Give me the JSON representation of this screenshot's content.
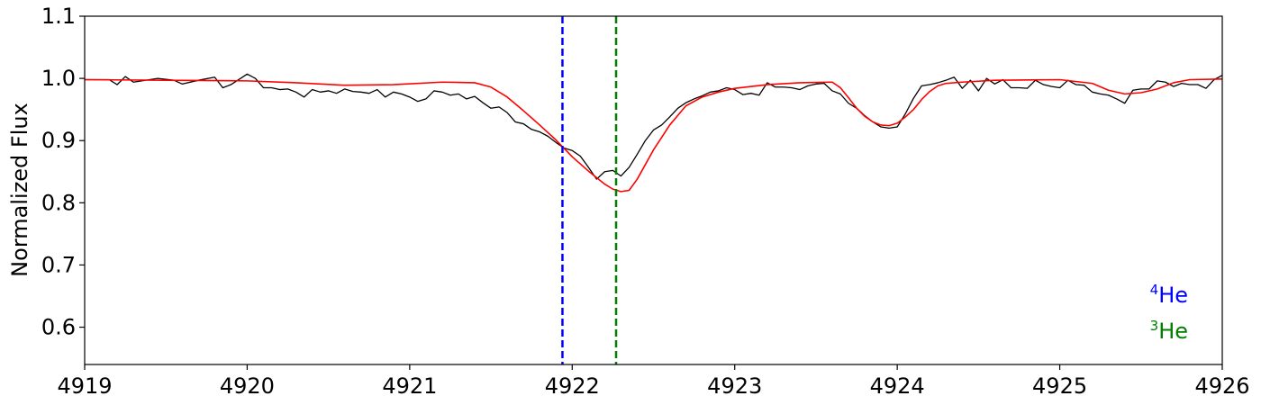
{
  "chart_data": {
    "type": "line",
    "title": "",
    "xlabel": "",
    "ylabel": "Normalized Flux",
    "xlim": [
      4919,
      4926
    ],
    "ylim": [
      0.54,
      1.1
    ],
    "xticks": [
      4919,
      4920,
      4921,
      4922,
      4923,
      4924,
      4925,
      4926
    ],
    "xtick_labels": [
      "4919",
      "4920",
      "4921",
      "4922",
      "4923",
      "4924",
      "4925",
      "4926"
    ],
    "yticks": [
      0.6,
      0.7,
      0.8,
      0.9,
      1.0,
      1.1
    ],
    "ytick_labels": [
      "0.6",
      "0.7",
      "0.8",
      "0.9",
      "1.0",
      "1.1"
    ],
    "grid": false,
    "series": [
      {
        "color": "#000000",
        "x": [
          4919.0,
          4919.15,
          4919.2,
          4919.25,
          4919.3,
          4919.35,
          4919.45,
          4919.55,
          4919.6,
          4919.7,
          4919.8,
          4919.85,
          4919.9,
          4920.0,
          4920.05,
          4920.1,
          4920.15,
          4920.2,
          4920.25,
          4920.3,
          4920.35,
          4920.4,
          4920.45,
          4920.5,
          4920.55,
          4920.6,
          4920.65,
          4920.7,
          4920.75,
          4920.8,
          4920.85,
          4920.9,
          4920.95,
          4921.0,
          4921.05,
          4921.1,
          4921.15,
          4921.2,
          4921.25,
          4921.3,
          4921.35,
          4921.4,
          4921.45,
          4921.5,
          4921.55,
          4921.6,
          4921.65,
          4921.7,
          4921.75,
          4921.8,
          4921.85,
          4921.9,
          4921.95,
          4922.0,
          4922.05,
          4922.1,
          4922.15,
          4922.2,
          4922.25,
          4922.3,
          4922.35,
          4922.4,
          4922.45,
          4922.5,
          4922.55,
          4922.6,
          4922.65,
          4922.7,
          4922.75,
          4922.8,
          4922.85,
          4922.9,
          4922.95,
          4923.0,
          4923.05,
          4923.1,
          4923.15,
          4923.2,
          4923.25,
          4923.3,
          4923.35,
          4923.4,
          4923.45,
          4923.5,
          4923.55,
          4923.6,
          4923.65,
          4923.7,
          4923.75,
          4923.8,
          4923.85,
          4923.9,
          4923.95,
          4924.0,
          4924.05,
          4924.1,
          4924.15,
          4924.2,
          4924.25,
          4924.3,
          4924.35,
          4924.4,
          4924.45,
          4924.5,
          4924.55,
          4924.6,
          4924.65,
          4924.7,
          4924.75,
          4924.8,
          4924.85,
          4924.9,
          4924.95,
          4925.0,
          4925.05,
          4925.1,
          4925.15,
          4925.2,
          4925.25,
          4925.3,
          4925.35,
          4925.4,
          4925.45,
          4925.5,
          4925.55,
          4925.6,
          4925.65,
          4925.7,
          4925.75,
          4925.8,
          4925.85,
          4925.9,
          4925.95,
          4926.0
        ],
        "y": [
          0.998,
          0.998,
          0.99,
          1.003,
          0.994,
          0.996,
          1.0,
          0.997,
          0.991,
          0.997,
          1.002,
          0.985,
          0.99,
          1.007,
          1.0,
          0.985,
          0.985,
          0.982,
          0.983,
          0.978,
          0.97,
          0.982,
          0.978,
          0.98,
          0.976,
          0.983,
          0.979,
          0.978,
          0.976,
          0.982,
          0.97,
          0.978,
          0.975,
          0.97,
          0.963,
          0.967,
          0.98,
          0.978,
          0.973,
          0.975,
          0.967,
          0.971,
          0.961,
          0.952,
          0.954,
          0.945,
          0.93,
          0.927,
          0.918,
          0.914,
          0.907,
          0.897,
          0.888,
          0.884,
          0.875,
          0.857,
          0.838,
          0.85,
          0.852,
          0.843,
          0.857,
          0.878,
          0.9,
          0.917,
          0.925,
          0.938,
          0.952,
          0.961,
          0.967,
          0.972,
          0.978,
          0.98,
          0.985,
          0.982,
          0.974,
          0.976,
          0.973,
          0.993,
          0.986,
          0.986,
          0.985,
          0.982,
          0.988,
          0.991,
          0.992,
          0.98,
          0.975,
          0.96,
          0.952,
          0.94,
          0.93,
          0.922,
          0.92,
          0.922,
          0.943,
          0.968,
          0.988,
          0.99,
          0.993,
          0.997,
          1.002,
          0.984,
          0.997,
          0.98,
          1.0,
          0.991,
          0.998,
          0.985,
          0.985,
          0.984,
          0.997,
          0.99,
          0.987,
          0.985,
          0.997,
          0.99,
          0.989,
          0.978,
          0.975,
          0.973,
          0.967,
          0.96,
          0.981,
          0.983,
          0.983,
          0.996,
          0.994,
          0.987,
          0.992,
          0.99,
          0.99,
          0.984,
          0.998,
          1.005
        ]
      },
      {
        "color": "#ff0000",
        "x": [
          4919.0,
          4919.5,
          4920.0,
          4920.3,
          4920.6,
          4920.9,
          4921.2,
          4921.4,
          4921.5,
          4921.6,
          4921.7,
          4921.8,
          4921.9,
          4922.0,
          4922.1,
          4922.2,
          4922.25,
          4922.3,
          4922.35,
          4922.4,
          4922.5,
          4922.6,
          4922.7,
          4922.8,
          4922.9,
          4923.0,
          4923.2,
          4923.4,
          4923.6,
          4923.65,
          4923.7,
          4923.75,
          4923.8,
          4923.85,
          4923.9,
          4923.95,
          4924.0,
          4924.05,
          4924.1,
          4924.15,
          4924.2,
          4924.25,
          4924.3,
          4924.4,
          4924.6,
          4925.0,
          4925.2,
          4925.3,
          4925.4,
          4925.5,
          4925.6,
          4925.7,
          4925.8,
          4926.0
        ],
        "y": [
          0.998,
          0.997,
          0.996,
          0.993,
          0.989,
          0.99,
          0.994,
          0.993,
          0.986,
          0.97,
          0.948,
          0.925,
          0.901,
          0.874,
          0.851,
          0.83,
          0.822,
          0.818,
          0.82,
          0.838,
          0.885,
          0.925,
          0.956,
          0.97,
          0.978,
          0.984,
          0.99,
          0.993,
          0.994,
          0.985,
          0.969,
          0.952,
          0.939,
          0.93,
          0.925,
          0.924,
          0.928,
          0.938,
          0.95,
          0.966,
          0.979,
          0.988,
          0.992,
          0.994,
          0.997,
          0.998,
          0.992,
          0.981,
          0.975,
          0.977,
          0.983,
          0.993,
          0.998,
          0.999
        ]
      }
    ],
    "reference_lines": [
      {
        "x": 4921.94,
        "color": "#0000ff",
        "style": "dashed"
      },
      {
        "x": 4922.27,
        "color": "#007f00",
        "style": "dashed"
      }
    ],
    "legend": {
      "placement": "lower-right",
      "entries": [
        {
          "sup": "4",
          "text": "He",
          "color": "#0000ff"
        },
        {
          "sup": "3",
          "text": "He",
          "color": "#007f00"
        }
      ]
    }
  }
}
